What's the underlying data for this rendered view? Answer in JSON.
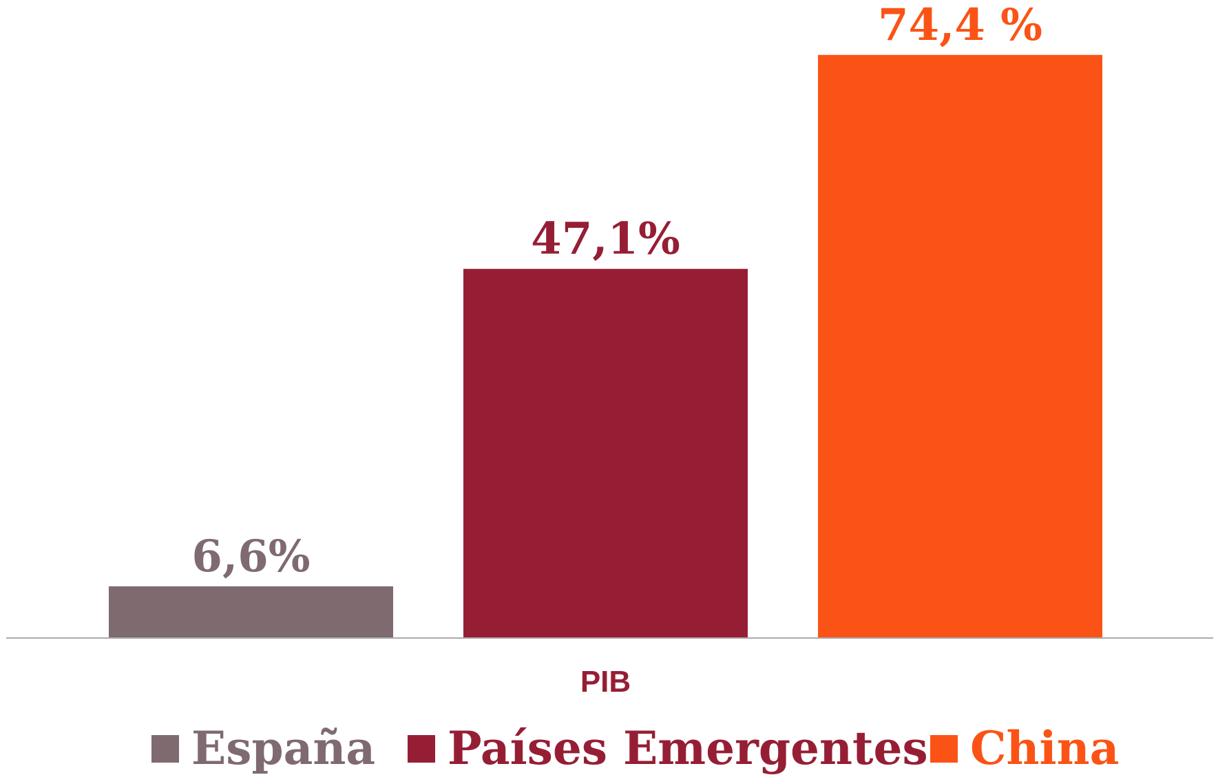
{
  "chart_data": {
    "type": "bar",
    "categories": [
      "PIB"
    ],
    "series": [
      {
        "name": "España",
        "color": "#7f6a70",
        "values": [
          6.6
        ],
        "value_labels": [
          "6,6%"
        ]
      },
      {
        "name": "Países Emergentes",
        "color": "#961e34",
        "values": [
          47.1
        ],
        "value_labels": [
          "47,1%"
        ]
      },
      {
        "name": "China",
        "color": "#fb5316",
        "values": [
          74.4
        ],
        "value_labels": [
          "74,4 %"
        ]
      }
    ],
    "ylim": [
      0,
      80
    ],
    "legend": "bottom"
  }
}
